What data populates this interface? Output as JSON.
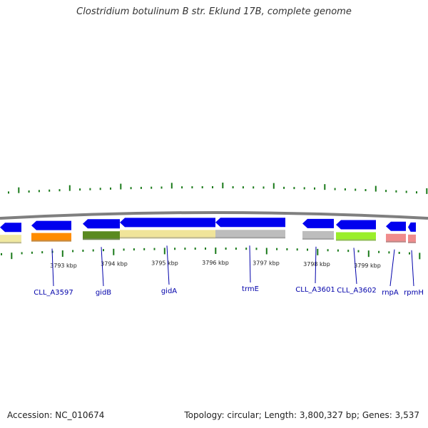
{
  "title": "Clostridium botulinum B str. Eklund 17B, complete genome",
  "accession": "Accession: NC_010674",
  "summary": "Topology: circular; Length: 3,800,327 bp; Genes: 3,537",
  "colors": {
    "backbone": "#7f7f7f",
    "gene": "#0000ee",
    "tick": "#1a7a1a",
    "label": "#0000aa"
  },
  "scale_labels": [
    {
      "text": "3793 kbp",
      "pos_kbp": 3793
    },
    {
      "text": "3794 kbp",
      "pos_kbp": 3794
    },
    {
      "text": "3795 kbp",
      "pos_kbp": 3795
    },
    {
      "text": "3796 kbp",
      "pos_kbp": 3796
    },
    {
      "text": "3797 kbp",
      "pos_kbp": 3797
    },
    {
      "text": "3798 kbp",
      "pos_kbp": 3798
    },
    {
      "text": "3799 kbp",
      "pos_kbp": 3799
    }
  ],
  "genes": [
    {
      "name": "",
      "color": "#f0e8a0"
    },
    {
      "name": "CLL_A3597",
      "color": "#ff8c00"
    },
    {
      "name": "gidB",
      "color": "#5a8a20"
    },
    {
      "name": "gidA",
      "color": "#f0e49a"
    },
    {
      "name": "trmE",
      "color": "#bdbdbd"
    },
    {
      "name": "CLL_A3601",
      "color": "#bdbdbd"
    },
    {
      "name": "CLL_A3602",
      "color": "#9aee2a"
    },
    {
      "name": "rnpA",
      "color": "#f08c8c"
    },
    {
      "name": "rpmH",
      "color": "#f08c8c"
    }
  ]
}
